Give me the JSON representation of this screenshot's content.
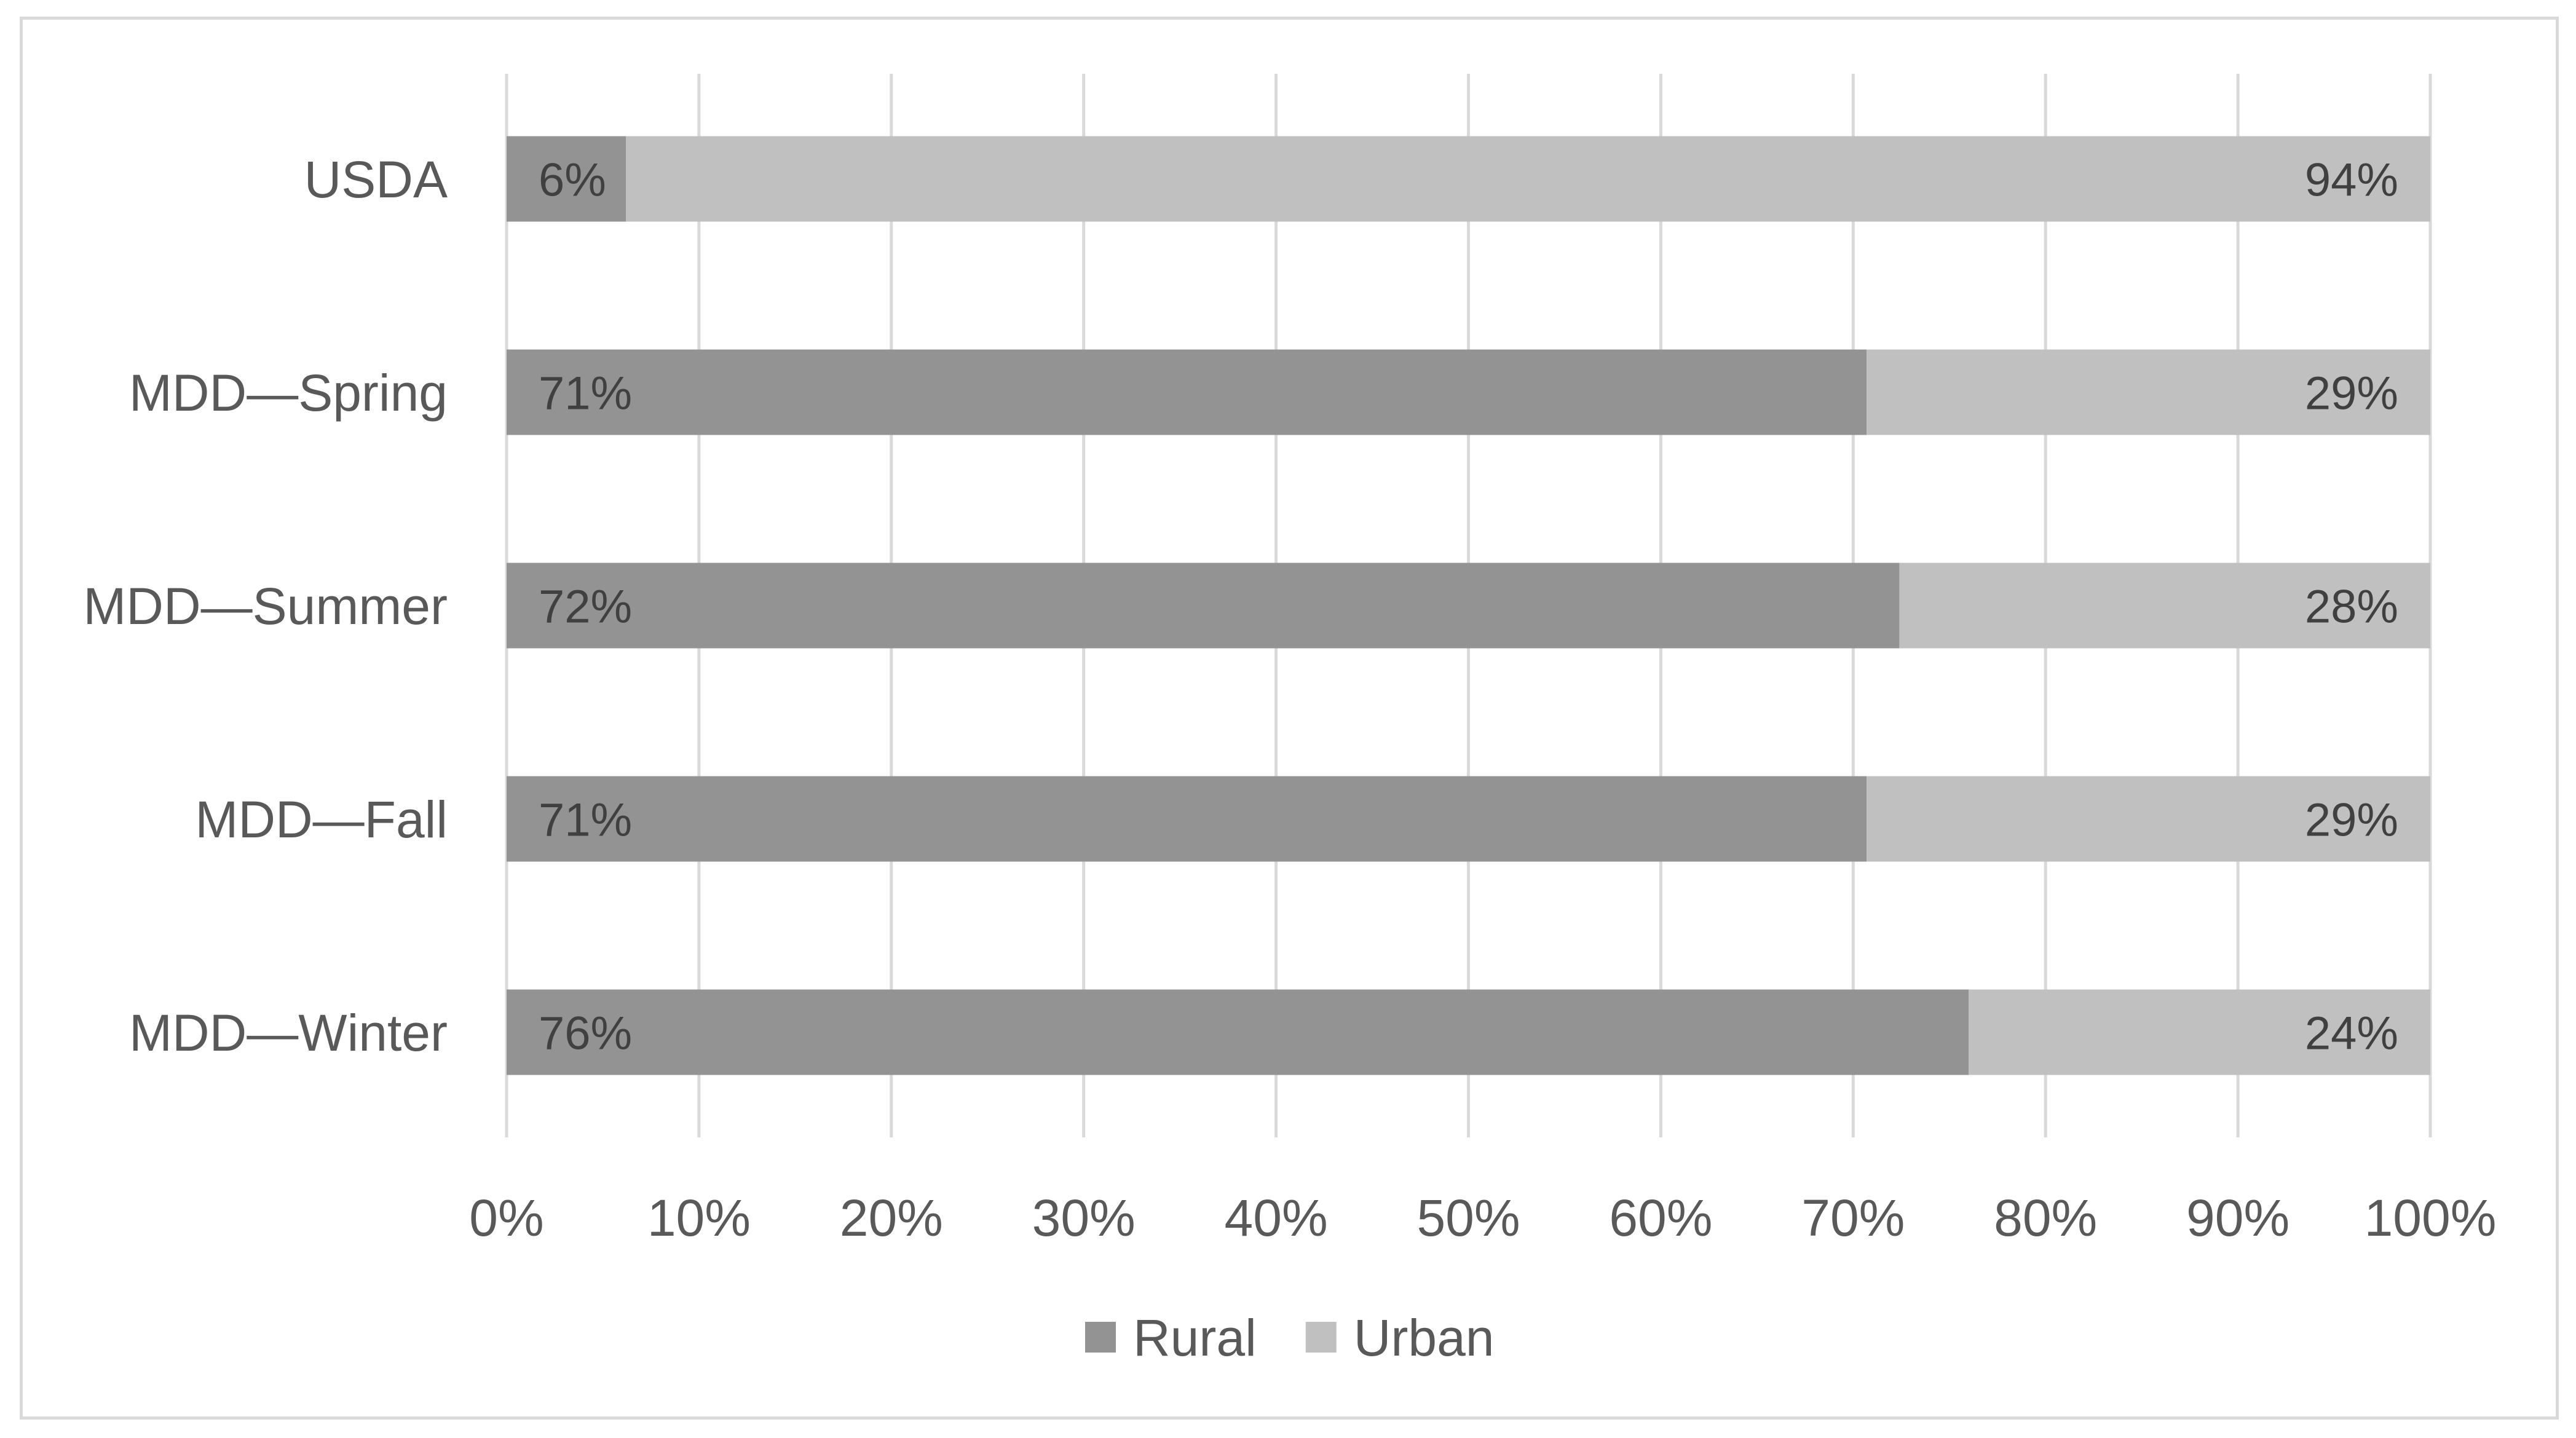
{
  "chart_data": {
    "type": "bar",
    "orientation": "horizontal",
    "stacked": true,
    "categories": [
      "USDA",
      "MDD—Spring",
      "MDD—Summer",
      "MDD—Fall",
      "MDD—Winter"
    ],
    "series": [
      {
        "name": "Rural",
        "values": [
          6.2,
          70.7,
          72.4,
          70.7,
          76.0
        ],
        "labels": [
          "6%",
          "71%",
          "72%",
          "71%",
          "76%"
        ],
        "color": "#939393"
      },
      {
        "name": "Urban",
        "values": [
          93.8,
          29.3,
          27.6,
          29.3,
          24.0
        ],
        "labels": [
          "94%",
          "29%",
          "28%",
          "29%",
          "24%"
        ],
        "color": "#c0c0c0"
      }
    ],
    "x_ticks": [
      "0%",
      "10%",
      "20%",
      "30%",
      "40%",
      "50%",
      "60%",
      "70%",
      "80%",
      "90%",
      "100%"
    ],
    "xlim": [
      0,
      100
    ],
    "grid": "vertical",
    "legend": "bottom",
    "gridline_color": "#d9d9d9"
  }
}
